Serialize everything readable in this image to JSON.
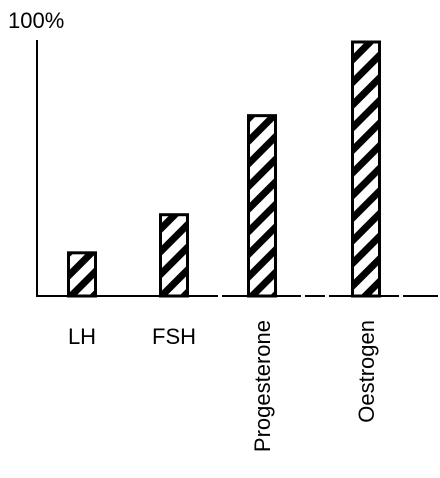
{
  "chart_data": {
    "type": "bar",
    "title": "",
    "xlabel": "",
    "ylabel": "",
    "y_top_label": "100%",
    "categories": [
      "LH",
      "FSH",
      "Progesterone",
      "Oestrogen"
    ],
    "values": [
      17,
      32,
      71,
      100
    ],
    "ylim": [
      0,
      100
    ],
    "grid": false,
    "bar_pattern": "diagonal-hatch",
    "colors": {
      "bar_fill": "#ffffff",
      "bar_hatch": "#000000",
      "bar_outline": "#000000",
      "axis": "#000000",
      "text": "#000000"
    }
  }
}
